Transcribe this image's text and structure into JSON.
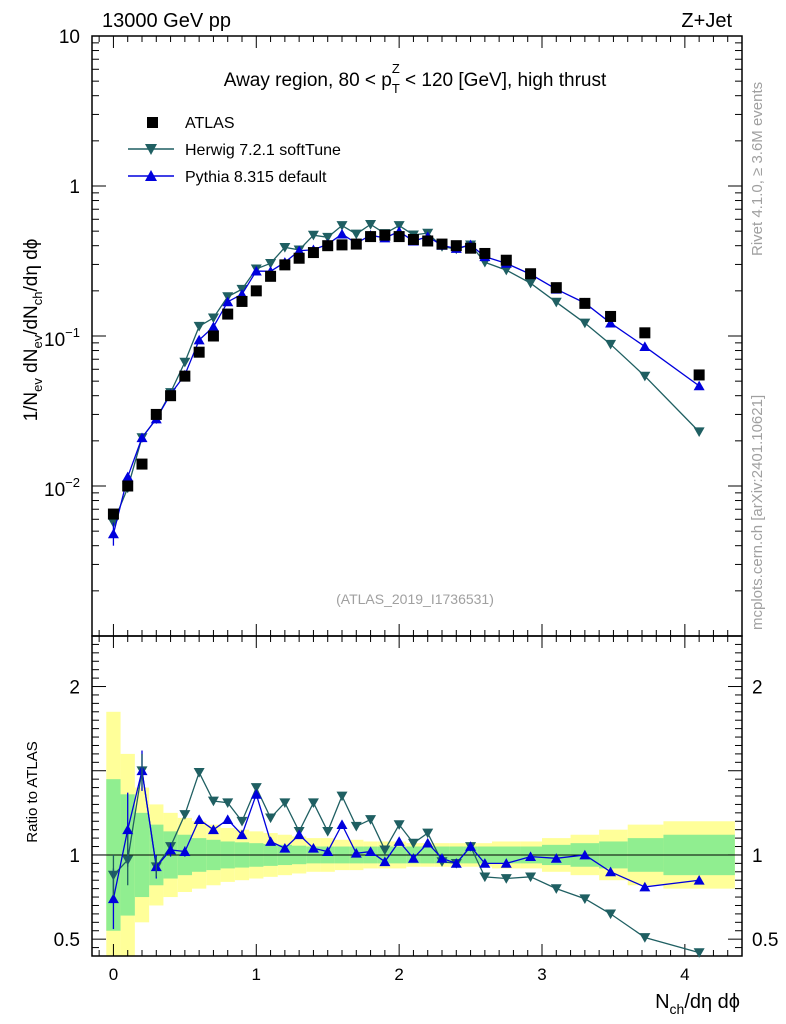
{
  "header": {
    "left": "13000 GeV pp",
    "right": "Z+Jet"
  },
  "side": {
    "rivet": "Rivet 4.1.0, ≥ 3.6M events",
    "mcplots": "mcplots.cern.ch [arXiv:2401.10621]"
  },
  "chart_data": {
    "type": "scatter",
    "title_parts": {
      "pre": "Away region, 80 < p",
      "sup": "Z",
      "sub": "T",
      "post": " < 120 [GeV], high thrust"
    },
    "analysis_tag": "(ATLAS_2019_I1736531)",
    "xlabel": {
      "main": "N",
      "sub": "ch",
      "rest": "/dη dϕ"
    },
    "ylabel_main": "1/N_ev dN_ev/dN_ch/dη dϕ",
    "ylabel_ratio": "Ratio to ATLAS",
    "xlim": [
      -0.15,
      4.4
    ],
    "ylim_main": [
      0.001,
      10
    ],
    "ylim_ratio": [
      0.4,
      2.3
    ],
    "yscale_main": "log",
    "x_ticks": [
      "0",
      "1",
      "2",
      "3",
      "4"
    ],
    "main_y_ticks": [
      {
        "base": "10",
        "exp": "−2"
      },
      {
        "base": "10",
        "exp": "−1"
      },
      {
        "base": "1",
        "exp": ""
      },
      {
        "base": "10",
        "exp": ""
      }
    ],
    "ratio_y_ticks": [
      "0.5",
      "1",
      "2"
    ],
    "legend": [
      {
        "label": "ATLAS",
        "marker": "square",
        "color": "#000000"
      },
      {
        "label": "Herwig 7.2.1 softTune",
        "marker": "triangle-down",
        "color": "#1f5f62"
      },
      {
        "label": "Pythia 8.315 default",
        "marker": "triangle-up",
        "color": "#0000dd"
      }
    ],
    "data": {
      "x": [
        0.0,
        0.1,
        0.2,
        0.3,
        0.4,
        0.5,
        0.6,
        0.7,
        0.8,
        0.9,
        1.0,
        1.1,
        1.2,
        1.3,
        1.4,
        1.5,
        1.6,
        1.7,
        1.8,
        1.9,
        2.0,
        2.1,
        2.2,
        2.3,
        2.4,
        2.5,
        2.6,
        2.75,
        2.92,
        3.1,
        3.3,
        3.48,
        3.72,
        4.1
      ],
      "y": [
        0.0065,
        0.01,
        0.014,
        0.03,
        0.04,
        0.054,
        0.078,
        0.1,
        0.14,
        0.17,
        0.2,
        0.25,
        0.298,
        0.33,
        0.36,
        0.4,
        0.405,
        0.41,
        0.46,
        0.47,
        0.46,
        0.44,
        0.43,
        0.41,
        0.4,
        0.385,
        0.355,
        0.32,
        0.26,
        0.21,
        0.165,
        0.135,
        0.105,
        0.055
      ]
    },
    "series": [
      {
        "name": "Herwig 7.2.1 softTune",
        "x": [
          0.0,
          0.1,
          0.2,
          0.3,
          0.4,
          0.5,
          0.6,
          0.7,
          0.8,
          0.9,
          1.0,
          1.1,
          1.2,
          1.3,
          1.4,
          1.5,
          1.6,
          1.7,
          1.8,
          1.9,
          2.0,
          2.1,
          2.2,
          2.3,
          2.4,
          2.5,
          2.6,
          2.75,
          2.92,
          3.1,
          3.3,
          3.48,
          3.72,
          4.1
        ],
        "y": [
          0.0057,
          0.0097,
          0.021,
          0.028,
          0.042,
          0.067,
          0.116,
          0.132,
          0.183,
          0.205,
          0.28,
          0.305,
          0.39,
          0.375,
          0.47,
          0.455,
          0.545,
          0.478,
          0.555,
          0.482,
          0.545,
          0.472,
          0.485,
          0.395,
          0.38,
          0.405,
          0.31,
          0.275,
          0.225,
          0.168,
          0.122,
          0.088,
          0.054,
          0.023
        ]
      },
      {
        "name": "Pythia 8.315 default",
        "x": [
          0.0,
          0.1,
          0.2,
          0.3,
          0.4,
          0.5,
          0.6,
          0.7,
          0.8,
          0.9,
          1.0,
          1.1,
          1.2,
          1.3,
          1.4,
          1.5,
          1.6,
          1.7,
          1.8,
          1.9,
          2.0,
          2.1,
          2.2,
          2.3,
          2.4,
          2.5,
          2.6,
          2.75,
          2.92,
          3.1,
          3.3,
          3.48,
          3.72,
          4.1
        ],
        "y": [
          0.0048,
          0.0115,
          0.021,
          0.028,
          0.041,
          0.055,
          0.094,
          0.115,
          0.169,
          0.19,
          0.271,
          0.27,
          0.31,
          0.37,
          0.376,
          0.409,
          0.478,
          0.415,
          0.47,
          0.45,
          0.498,
          0.429,
          0.46,
          0.402,
          0.383,
          0.405,
          0.338,
          0.305,
          0.258,
          0.205,
          0.166,
          0.122,
          0.085,
          0.0465
        ]
      }
    ],
    "ratio_series": [
      {
        "name": "Herwig 7.2.1 softTune",
        "values": [
          0.88,
          0.97,
          1.5,
          0.93,
          1.05,
          1.24,
          1.49,
          1.32,
          1.31,
          1.2,
          1.4,
          1.22,
          1.31,
          1.14,
          1.31,
          1.14,
          1.35,
          1.17,
          1.21,
          1.03,
          1.18,
          1.07,
          1.13,
          0.96,
          0.95,
          1.05,
          0.87,
          0.86,
          0.87,
          0.8,
          0.74,
          0.65,
          0.51,
          0.42
        ]
      },
      {
        "name": "Pythia 8.315 default",
        "values": [
          0.74,
          1.15,
          1.5,
          0.93,
          1.03,
          1.02,
          1.21,
          1.15,
          1.21,
          1.12,
          1.36,
          1.08,
          1.04,
          1.12,
          1.04,
          1.02,
          1.18,
          1.01,
          1.02,
          0.96,
          1.08,
          0.98,
          1.07,
          0.98,
          0.95,
          1.05,
          0.95,
          0.95,
          0.99,
          0.98,
          1.0,
          0.9,
          0.81,
          0.85
        ]
      }
    ],
    "ratio_bands": {
      "edges": [
        -0.05,
        0.05,
        0.15,
        0.25,
        0.35,
        0.45,
        0.55,
        0.65,
        0.75,
        0.85,
        0.95,
        1.05,
        1.15,
        1.25,
        1.35,
        1.45,
        1.55,
        1.65,
        1.75,
        1.85,
        1.95,
        2.05,
        2.15,
        2.25,
        2.35,
        2.45,
        2.55,
        2.65,
        2.85,
        3.0,
        3.2,
        3.4,
        3.6,
        3.85,
        4.35
      ],
      "inner": [
        0.45,
        0.36,
        0.25,
        0.18,
        0.14,
        0.12,
        0.1,
        0.09,
        0.08,
        0.075,
        0.07,
        0.065,
        0.06,
        0.055,
        0.05,
        0.05,
        0.05,
        0.05,
        0.05,
        0.05,
        0.05,
        0.05,
        0.05,
        0.05,
        0.05,
        0.05,
        0.05,
        0.05,
        0.05,
        0.06,
        0.07,
        0.08,
        0.1,
        0.12
      ],
      "outer": [
        0.85,
        0.6,
        0.4,
        0.3,
        0.25,
        0.22,
        0.2,
        0.18,
        0.16,
        0.15,
        0.14,
        0.13,
        0.12,
        0.11,
        0.1,
        0.1,
        0.09,
        0.09,
        0.08,
        0.08,
        0.08,
        0.07,
        0.07,
        0.07,
        0.07,
        0.07,
        0.07,
        0.08,
        0.08,
        0.1,
        0.12,
        0.15,
        0.18,
        0.2
      ]
    },
    "colors": {
      "inner_band": "#90ee90",
      "outer_band": "#ffff99"
    }
  }
}
